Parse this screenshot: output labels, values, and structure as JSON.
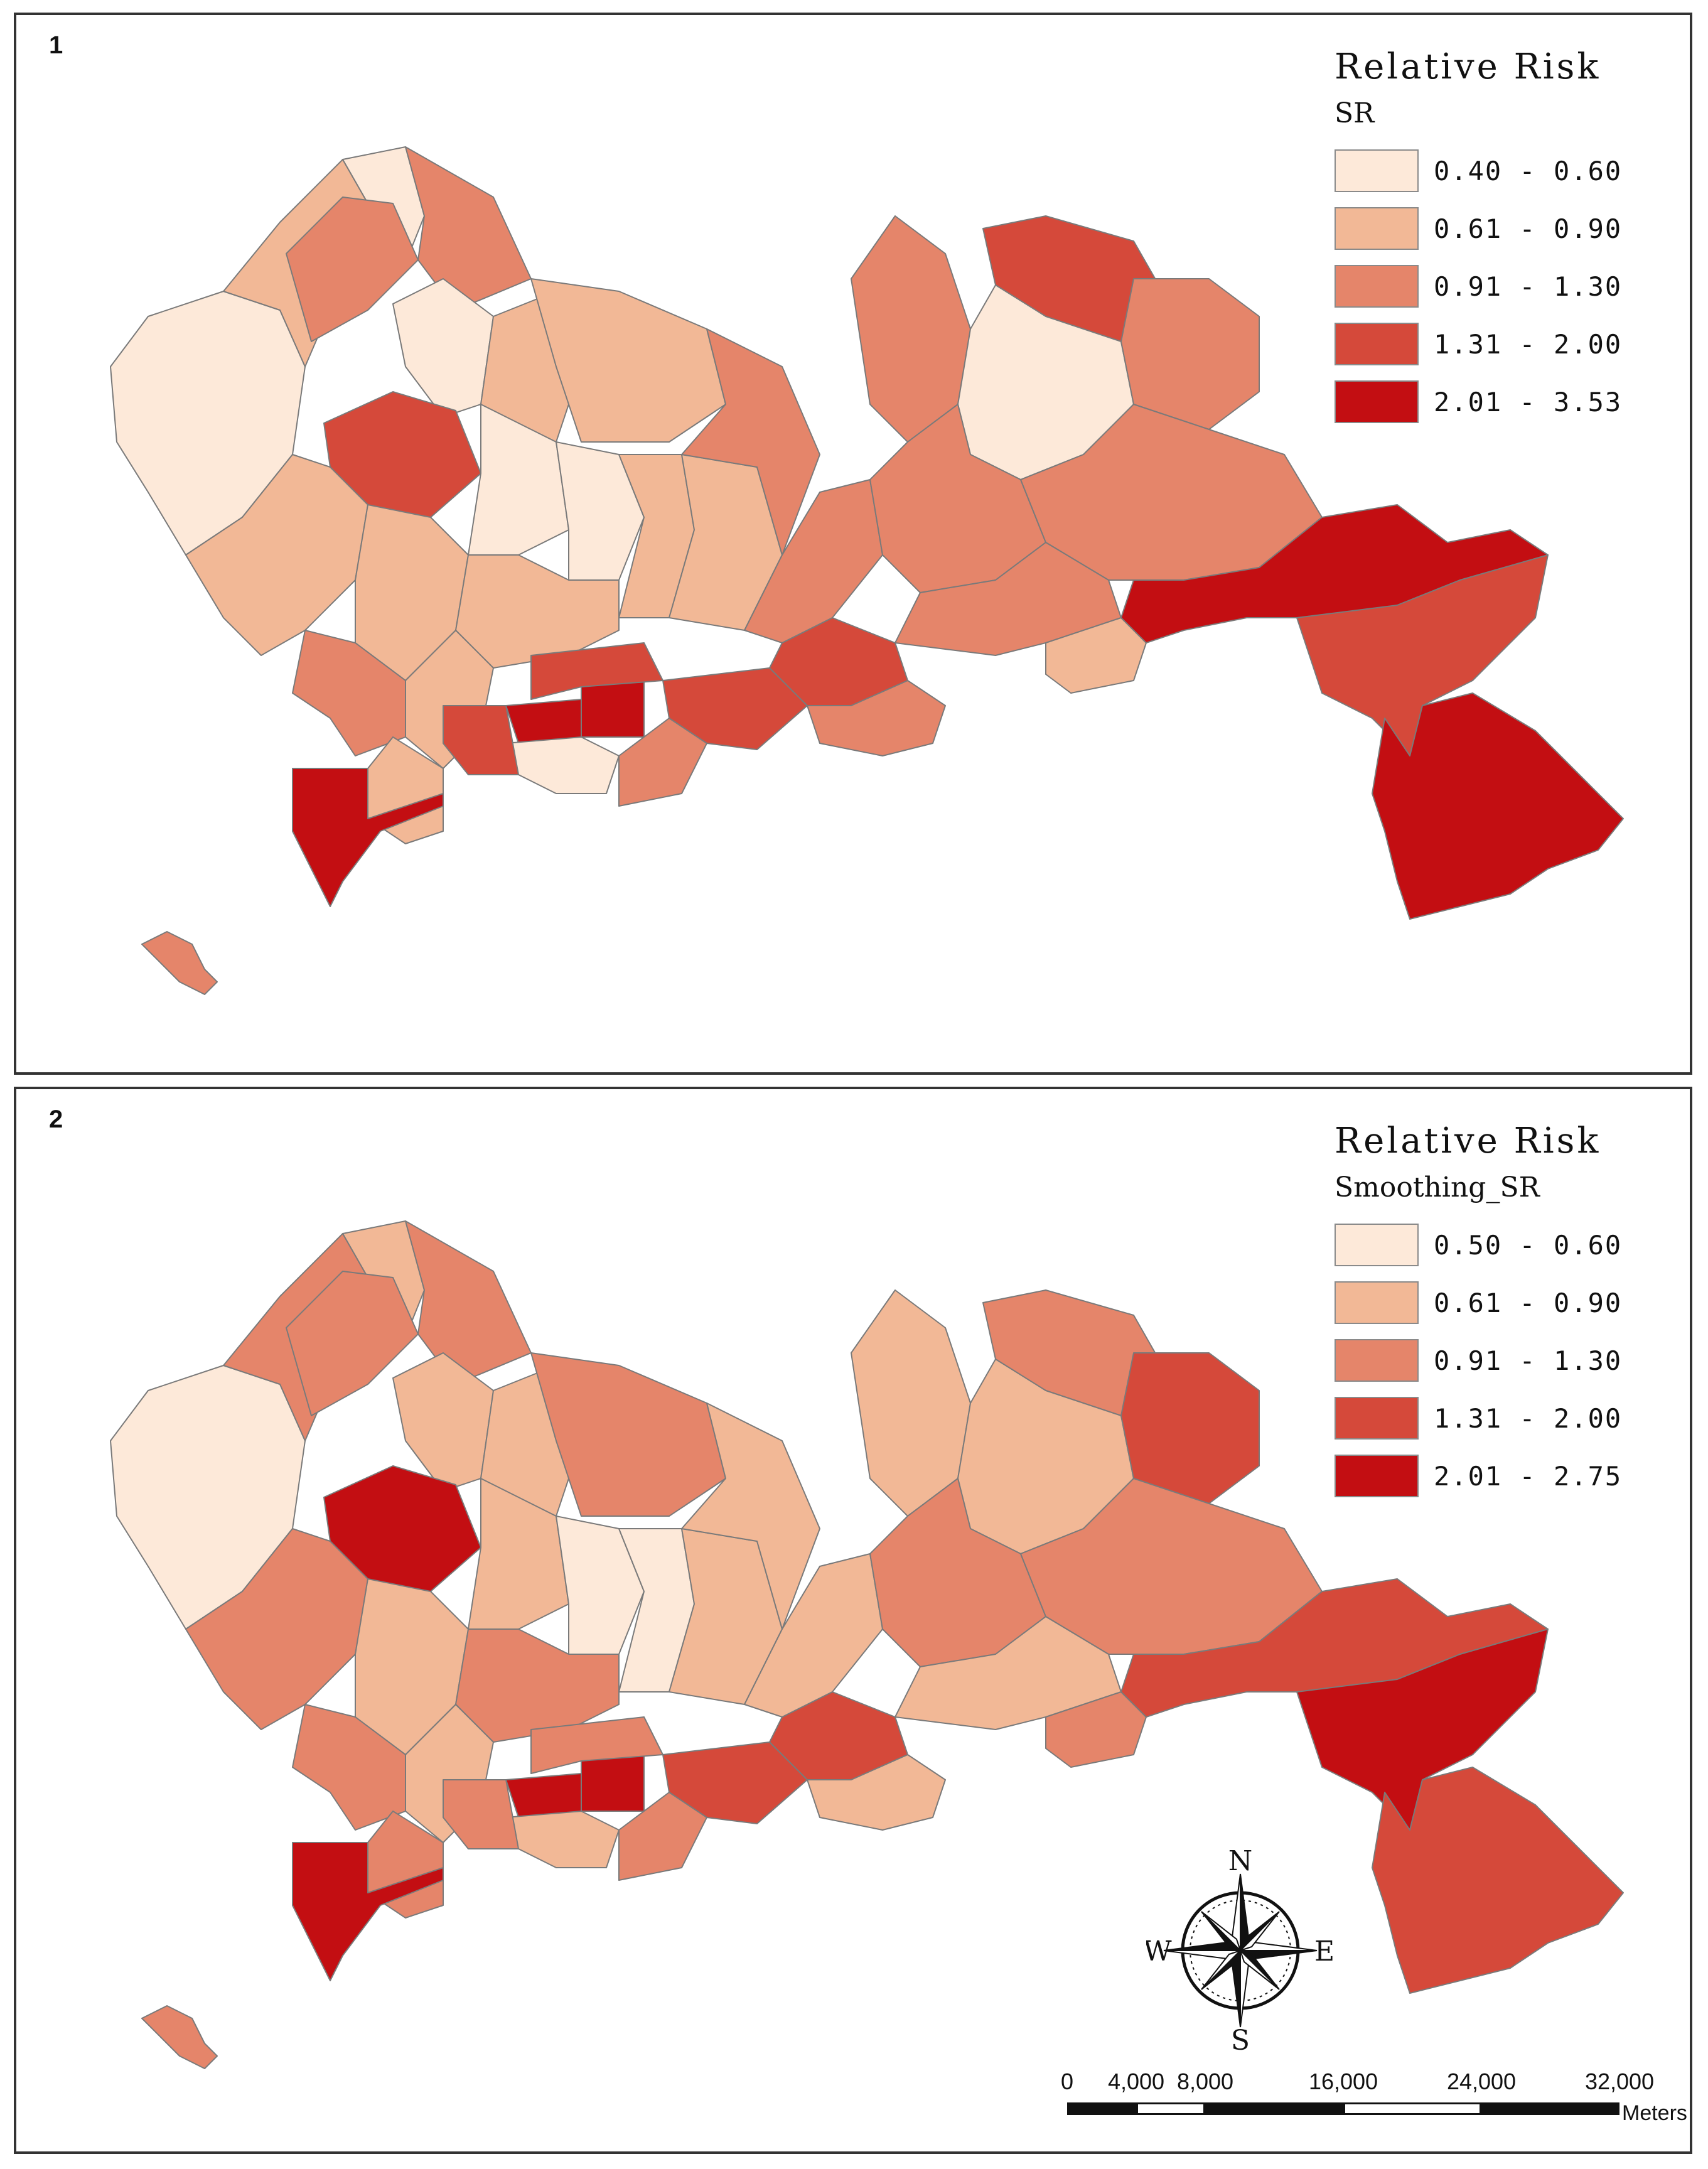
{
  "panels": [
    {
      "number": "1",
      "legend": {
        "title": "Relative Risk",
        "field": "SR",
        "classes": [
          {
            "label": "0.40 - 0.60",
            "color": "#fde9d9"
          },
          {
            "label": "0.61 - 0.90",
            "color": "#f2b896"
          },
          {
            "label": "0.91 - 1.30",
            "color": "#e5856a"
          },
          {
            "label": "1.31 - 2.00",
            "color": "#d5493a"
          },
          {
            "label": "2.01 - 3.53",
            "color": "#c30e12"
          }
        ]
      }
    },
    {
      "number": "2",
      "legend": {
        "title": "Relative Risk",
        "field": "Smoothing_SR",
        "classes": [
          {
            "label": "0.50 - 0.60",
            "color": "#fde9d9"
          },
          {
            "label": "0.61 - 0.90",
            "color": "#f2b896"
          },
          {
            "label": "0.91 - 1.30",
            "color": "#e5856a"
          },
          {
            "label": "1.31 - 2.00",
            "color": "#d5493a"
          },
          {
            "label": "2.01 - 2.75",
            "color": "#c30e12"
          }
        ]
      }
    }
  ],
  "compass": {
    "n": "N",
    "s": "S",
    "e": "E",
    "w": "W"
  },
  "scalebar": {
    "labels": [
      "0",
      "4,000",
      "8,000",
      "16,000",
      "24,000",
      "32,000"
    ],
    "units": "Meters"
  }
}
